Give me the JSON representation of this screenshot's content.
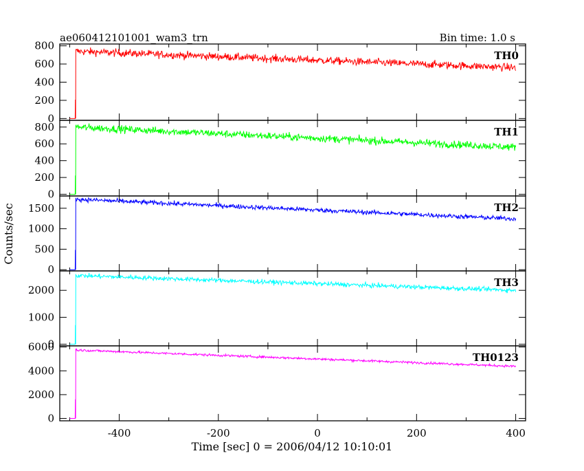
{
  "header": {
    "title": "ae060412101001_wam3_trn",
    "bin_time": "Bin time: 1.0 s"
  },
  "chart_data": {
    "type": "line",
    "xlabel": "Time [sec] 0 = 2006/04/12 10:10:01",
    "ylabel": "Counts/sec",
    "xlim": [
      -520,
      420
    ],
    "x_ticks": [
      -400,
      -200,
      0,
      200,
      400
    ],
    "grid": false,
    "series": [
      {
        "name": "TH0",
        "color": "#ff0000",
        "ylim": [
          -20,
          820
        ],
        "y_ticks": [
          0,
          200,
          400,
          600,
          800
        ],
        "pre_level": 0,
        "onset_x": -488,
        "peak": 740,
        "end_level": 560,
        "noise": 30,
        "x_end": 400
      },
      {
        "name": "TH1",
        "color": "#00ff00",
        "ylim": [
          -20,
          880
        ],
        "y_ticks": [
          0,
          200,
          400,
          600,
          800
        ],
        "pre_level": 0,
        "onset_x": -488,
        "peak": 800,
        "end_level": 560,
        "noise": 32,
        "x_end": 400
      },
      {
        "name": "TH2",
        "color": "#0000ff",
        "ylim": [
          -30,
          1800
        ],
        "y_ticks": [
          0,
          500,
          1000,
          1500
        ],
        "pre_level": 0,
        "onset_x": -488,
        "peak": 1720,
        "end_level": 1240,
        "noise": 40,
        "x_end": 400
      },
      {
        "name": "TH3",
        "color": "#00ffff",
        "ylim": [
          -60,
          2720
        ],
        "y_ticks": [
          0,
          1000,
          2000
        ],
        "pre_level": 0,
        "onset_x": -488,
        "peak": 2550,
        "end_level": 2000,
        "noise": 60,
        "x_end": 400
      },
      {
        "name": "TH0123",
        "color": "#ff00ff",
        "ylim": [
          -200,
          6100
        ],
        "y_ticks": [
          0,
          2000,
          4000,
          6000
        ],
        "pre_level": 0,
        "onset_x": -488,
        "peak": 5750,
        "end_level": 4380,
        "noise": 70,
        "x_end": 400
      }
    ]
  }
}
